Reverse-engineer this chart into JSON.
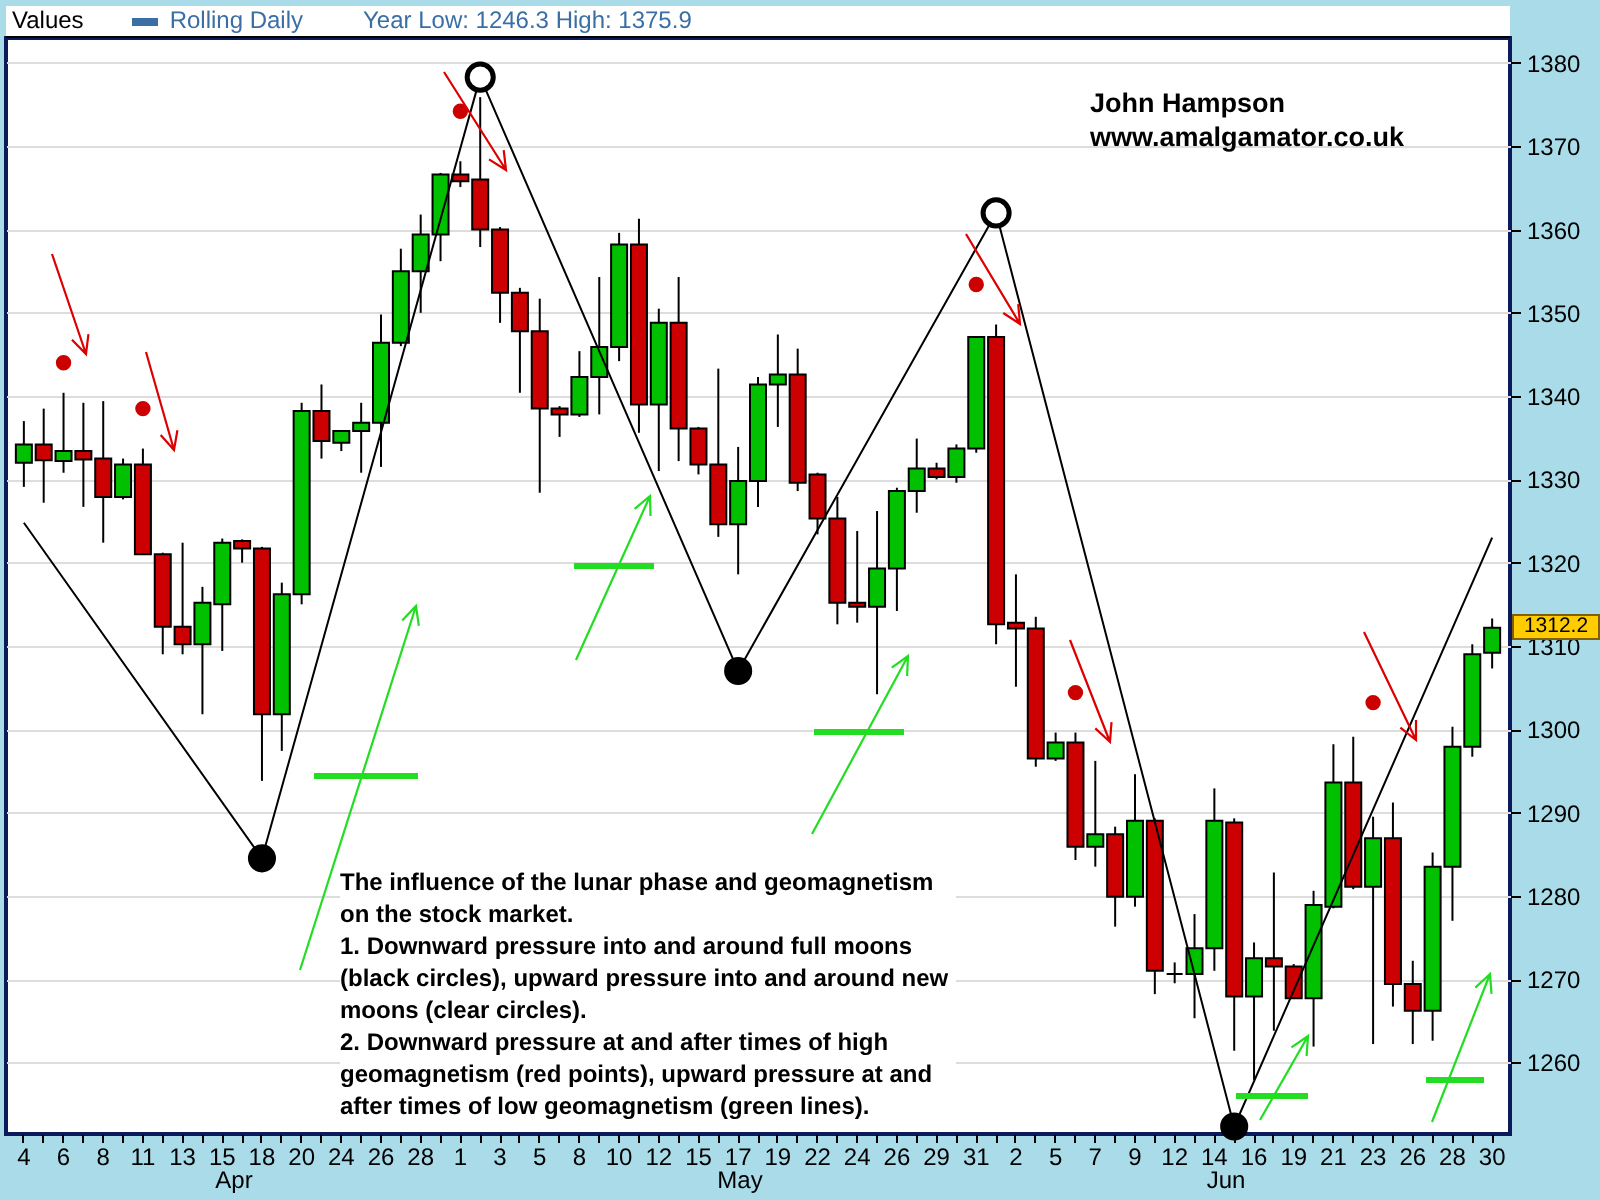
{
  "chart_data": {
    "type": "candlestick",
    "title": "Values",
    "subtitle": "Year Low: 1246.3 High: 1375.9",
    "categories": [
      "4",
      null,
      "6",
      null,
      "8",
      null,
      "11",
      null,
      "13",
      null,
      "15",
      null,
      "18",
      null,
      "20",
      null,
      "24",
      null,
      "26",
      null,
      "28",
      null,
      "1",
      null,
      "3",
      null,
      "5",
      null,
      "8",
      null,
      "10",
      null,
      "12",
      null,
      "15",
      null,
      "17",
      null,
      "19",
      null,
      "22",
      null,
      "24",
      null,
      "26",
      null,
      "29",
      null,
      "31",
      null,
      "2",
      null,
      "5",
      null,
      "7",
      null,
      "9",
      null,
      "12",
      null,
      "14",
      null,
      "16",
      null,
      "19",
      null,
      "21",
      null,
      "23",
      null,
      "26",
      null,
      "28",
      null,
      "30"
    ],
    "ylim": [
      1251.4,
      1383
    ],
    "yticks": [
      1260,
      1270,
      1280,
      1290,
      1300,
      1310,
      1320,
      1330,
      1340,
      1350,
      1360,
      1370,
      1380
    ],
    "grid": "y",
    "legend": "top left",
    "series": [
      {
        "name": "Rolling Daily",
        "type": "candlestick",
        "color": "#3a6ea5",
        "ohlc": [
          [
            1332,
            1337,
            1329.1,
            1334.2
          ],
          [
            1334.2,
            1338.5,
            1327.2,
            1332.3
          ],
          [
            1332.2,
            1340.4,
            1330.8,
            1333.4
          ],
          [
            1333.4,
            1339.2,
            1326.7,
            1332.4
          ],
          [
            1332.5,
            1339.4,
            1322.4,
            1327.9
          ],
          [
            1327.9,
            1332.5,
            1327.6,
            1331.8
          ],
          [
            1331.8,
            1333.7,
            1321,
            1321
          ],
          [
            1321,
            1321.2,
            1309,
            1312.3
          ],
          [
            1312.3,
            1322.4,
            1309,
            1310.2
          ],
          [
            1310.2,
            1317.1,
            1301.8,
            1315.2
          ],
          [
            1315,
            1322.9,
            1309.4,
            1322.4
          ],
          [
            1322.6,
            1322.8,
            1320,
            1321.7
          ],
          [
            1321.7,
            1321.9,
            1293.8,
            1301.8
          ],
          [
            1301.8,
            1317.6,
            1297.4,
            1316.2
          ],
          [
            1316.2,
            1339.2,
            1315,
            1338.2
          ],
          [
            1338.2,
            1341.4,
            1332.5,
            1334.6
          ],
          [
            1334.4,
            1335.8,
            1333.4,
            1335.8
          ],
          [
            1335.8,
            1339.2,
            1330.8,
            1336.8
          ],
          [
            1336.8,
            1349.8,
            1331.5,
            1346.4
          ],
          [
            1346.4,
            1357.7,
            1346,
            1355
          ],
          [
            1355,
            1361.8,
            1350,
            1359.4
          ],
          [
            1359.4,
            1366.8,
            1356.2,
            1366.6
          ],
          [
            1366.6,
            1368.2,
            1365.1,
            1365.8
          ],
          [
            1366,
            1375.9,
            1357.9,
            1360
          ],
          [
            1360,
            1360.3,
            1348.8,
            1352.4
          ],
          [
            1352.4,
            1353,
            1340.4,
            1347.8
          ],
          [
            1347.8,
            1351.7,
            1328.4,
            1338.5
          ],
          [
            1338.5,
            1338.8,
            1335.1,
            1337.8
          ],
          [
            1337.8,
            1345.4,
            1337.5,
            1342.3
          ],
          [
            1342.3,
            1354.3,
            1337.8,
            1345.9
          ],
          [
            1345.9,
            1359.6,
            1344.2,
            1358.2
          ],
          [
            1358.2,
            1361.3,
            1335.6,
            1339
          ],
          [
            1339,
            1350.5,
            1331,
            1348.8
          ],
          [
            1348.8,
            1354.3,
            1332.2,
            1336.1
          ],
          [
            1336.1,
            1336.3,
            1330.6,
            1331.8
          ],
          [
            1331.8,
            1343.3,
            1323.1,
            1324.6
          ],
          [
            1324.6,
            1333.9,
            1318.6,
            1329.8
          ],
          [
            1329.8,
            1342.3,
            1326.7,
            1341.4
          ],
          [
            1341.4,
            1347.4,
            1336.3,
            1342.6
          ],
          [
            1342.6,
            1345.7,
            1328.6,
            1329.6
          ],
          [
            1330.6,
            1330.8,
            1323.4,
            1325.3
          ],
          [
            1325.3,
            1327.9,
            1312.6,
            1315.2
          ],
          [
            1315.2,
            1323.8,
            1312.8,
            1314.7
          ],
          [
            1314.7,
            1326.2,
            1304.2,
            1319.3
          ],
          [
            1319.3,
            1329,
            1314.2,
            1328.6
          ],
          [
            1328.6,
            1334.9,
            1326,
            1331.3
          ],
          [
            1331.3,
            1332,
            1330,
            1330.3
          ],
          [
            1330.3,
            1334.2,
            1329.6,
            1333.7
          ],
          [
            1333.7,
            1347.1,
            1333.2,
            1347.1
          ],
          [
            1347.1,
            1348.6,
            1310.2,
            1312.6
          ],
          [
            1312.8,
            1318.6,
            1305.1,
            1312.1
          ],
          [
            1312.1,
            1313.5,
            1295.5,
            1296.5
          ],
          [
            1296.5,
            1299.6,
            1296.2,
            1298.4
          ],
          [
            1298.4,
            1299.6,
            1284.3,
            1285.9
          ],
          [
            1285.9,
            1296.2,
            1283.5,
            1287.4
          ],
          [
            1287.4,
            1288.3,
            1276.3,
            1279.9
          ],
          [
            1279.9,
            1294.6,
            1278.7,
            1289
          ],
          [
            1289,
            1289.3,
            1268.2,
            1271
          ],
          [
            1270.6,
            1272,
            1269.5,
            1270.6
          ],
          [
            1270.6,
            1277.8,
            1265.3,
            1273.7
          ],
          [
            1273.7,
            1292.9,
            1271,
            1289
          ],
          [
            1288.8,
            1289.3,
            1261.4,
            1267.9
          ],
          [
            1267.9,
            1274.4,
            1257.9,
            1272.5
          ],
          [
            1272.5,
            1282.8,
            1263.8,
            1271.5
          ],
          [
            1271.5,
            1271.8,
            1267.7,
            1267.7
          ],
          [
            1267.7,
            1280.6,
            1261.9,
            1278.9
          ],
          [
            1278.7,
            1298.2,
            1278.5,
            1293.6
          ],
          [
            1293.6,
            1299.1,
            1280.8,
            1281.1
          ],
          [
            1281.1,
            1289.5,
            1262.2,
            1286.9
          ],
          [
            1286.9,
            1291.2,
            1266.7,
            1269.4
          ],
          [
            1269.4,
            1272.2,
            1262.2,
            1266.2
          ],
          [
            1266.2,
            1285.2,
            1262.6,
            1283.5
          ],
          [
            1283.5,
            1300.3,
            1277,
            1297.9
          ],
          [
            1297.9,
            1310.2,
            1296.7,
            1309
          ],
          [
            1309.2,
            1313.3,
            1307.3,
            1312.2
          ]
        ],
        "colors": [
          "#00c000",
          "#cc0000",
          "#00c000",
          "#cc0000",
          "#cc0000",
          "#00c000",
          "#cc0000",
          "#cc0000",
          "#cc0000",
          "#00c000",
          "#00c000",
          "#cc0000",
          "#cc0000",
          "#00c000",
          "#00c000",
          "#cc0000",
          "#00c000",
          "#00c000",
          "#00c000",
          "#00c000",
          "#00c000",
          "#00c000",
          "#cc0000",
          "#cc0000",
          "#cc0000",
          "#cc0000",
          "#cc0000",
          "#cc0000",
          "#00c000",
          "#00c000",
          "#00c000",
          "#cc0000",
          "#00c000",
          "#cc0000",
          "#cc0000",
          "#cc0000",
          "#00c000",
          "#00c000",
          "#00c000",
          "#cc0000",
          "#cc0000",
          "#cc0000",
          "#cc0000",
          "#00c000",
          "#00c000",
          "#00c000",
          "#cc0000",
          "#00c000",
          "#00c000",
          "#cc0000",
          "#cc0000",
          "#cc0000",
          "#00c000",
          "#cc0000",
          "#00c000",
          "#cc0000",
          "#00c000",
          "#cc0000",
          "#000000",
          "#00c000",
          "#00c000",
          "#cc0000",
          "#00c000",
          "#cc0000",
          "#cc0000",
          "#00c000",
          "#00c000",
          "#cc0000",
          "#00c000",
          "#cc0000",
          "#cc0000",
          "#00c000",
          "#00c000",
          "#00c000",
          "#00c000"
        ]
      },
      {
        "type": "line",
        "color": "#000000",
        "values": [
          1324.8,
          null,
          null,
          null,
          null,
          null,
          null,
          null,
          null,
          null,
          null,
          null,
          1284.5,
          null,
          null,
          null,
          null,
          null,
          null,
          null,
          null,
          null,
          null,
          1378.3,
          null,
          null,
          null,
          null,
          null,
          null,
          null,
          null,
          null,
          null,
          null,
          null,
          1307,
          null,
          null,
          null,
          null,
          null,
          null,
          null,
          null,
          null,
          null,
          null,
          null,
          1362,
          null,
          null,
          null,
          null,
          null,
          null,
          null,
          null,
          null,
          null,
          null,
          1252.3,
          null,
          null,
          null,
          null,
          null,
          null,
          null,
          null,
          null,
          null,
          null,
          null,
          1323
        ]
      },
      {
        "type": "scatter",
        "marker": "circle",
        "color": "#000000",
        "values": [
          null,
          null,
          null,
          null,
          null,
          null,
          null,
          null,
          null,
          null,
          null,
          null,
          1284.5,
          null,
          null,
          null,
          null,
          null,
          null,
          null,
          null,
          null,
          null,
          null,
          null,
          null,
          null,
          null,
          null,
          null,
          null,
          null,
          null,
          null,
          null,
          null,
          1307,
          null,
          null,
          null,
          null,
          null,
          null,
          null,
          null,
          null,
          null,
          null,
          null,
          null,
          null,
          null,
          null,
          null,
          null,
          null,
          null,
          null,
          null,
          null,
          null,
          1252.3,
          null,
          null,
          null,
          null,
          null,
          null,
          null,
          null,
          null,
          null,
          null,
          null,
          null
        ]
      },
      {
        "type": "scatter",
        "marker": "circle",
        "color": "#ffffff",
        "values": [
          null,
          null,
          null,
          null,
          null,
          null,
          null,
          null,
          null,
          null,
          null,
          null,
          null,
          null,
          null,
          null,
          null,
          null,
          null,
          null,
          null,
          null,
          null,
          1378.3,
          null,
          null,
          null,
          null,
          null,
          null,
          null,
          null,
          null,
          null,
          null,
          null,
          null,
          null,
          null,
          null,
          null,
          null,
          null,
          null,
          null,
          null,
          null,
          null,
          null,
          1362,
          null,
          null,
          null,
          null,
          null,
          null,
          null,
          null,
          null,
          null,
          null,
          null,
          null,
          null,
          null,
          null,
          null,
          null,
          null,
          null,
          null,
          null,
          null,
          null,
          null
        ]
      },
      {
        "type": "scatter",
        "marker": "circle",
        "color": "#cc0000",
        "values": [
          null,
          null,
          1344,
          null,
          null,
          null,
          1338.5,
          null,
          null,
          null,
          null,
          null,
          null,
          null,
          null,
          null,
          null,
          null,
          null,
          null,
          null,
          null,
          1374.2,
          null,
          null,
          null,
          null,
          null,
          null,
          null,
          null,
          null,
          null,
          null,
          null,
          null,
          null,
          null,
          null,
          null,
          null,
          null,
          null,
          null,
          null,
          null,
          null,
          null,
          1353.4,
          null,
          null,
          null,
          null,
          1304.4,
          null,
          null,
          null,
          null,
          null,
          null,
          null,
          null,
          null,
          null,
          null,
          null,
          null,
          null,
          1303.2,
          null,
          null,
          null,
          null,
          null,
          null
        ]
      }
    ],
    "annotations": [
      "John Hampson",
      "www.amalgamator.co.uk",
      "The influence of the lunar phase and geomagnetism on the stock market.",
      "1. Downward pressure into and around full moons (black circles), upward pressure into and around new moons (clear circles).",
      "2. Downward pressure at and after times of high geomagnetism (red points), upward pressure at and after times of low geomagnetism (green lines).",
      "1312.2",
      "Apr",
      "May",
      "Jun"
    ]
  }
}
